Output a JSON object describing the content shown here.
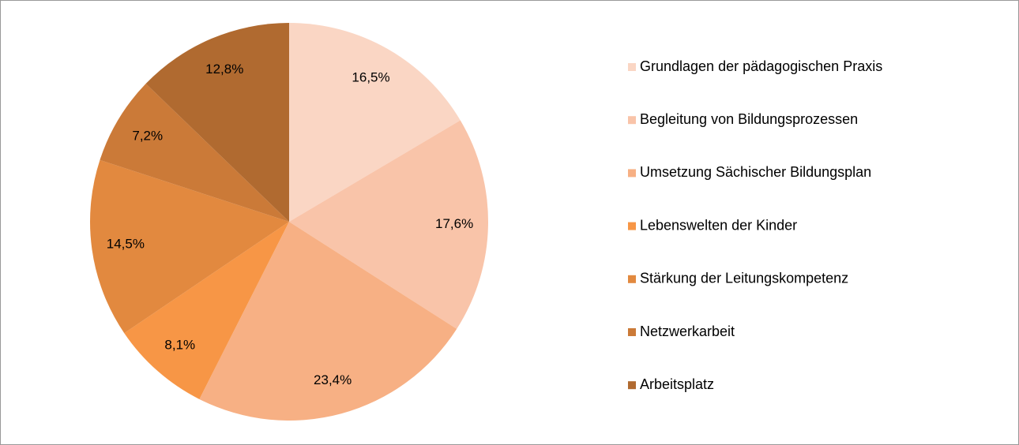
{
  "chart_data": {
    "type": "pie",
    "categories": [
      "Grundlagen der pädagogischen Praxis",
      "Begleitung von Bildungsprozessen",
      "Umsetzung Sächischer Bildungsplan",
      "Lebenswelten der Kinder",
      "Stärkung der Leitungskompetenz",
      "Netzwerkarbeit",
      "Arbeitsplatz"
    ],
    "values": [
      16.5,
      17.6,
      23.4,
      8.1,
      14.5,
      7.2,
      12.8
    ],
    "value_labels": [
      "16,5%",
      "17,6%",
      "23,4%",
      "8,1%",
      "14,5%",
      "7,2%",
      "12,8%"
    ],
    "colors": [
      "#fad6c4",
      "#f9c4a9",
      "#f7b084",
      "#f79646",
      "#e2893f",
      "#cb7a38",
      "#b06a30"
    ],
    "legend": "right"
  }
}
